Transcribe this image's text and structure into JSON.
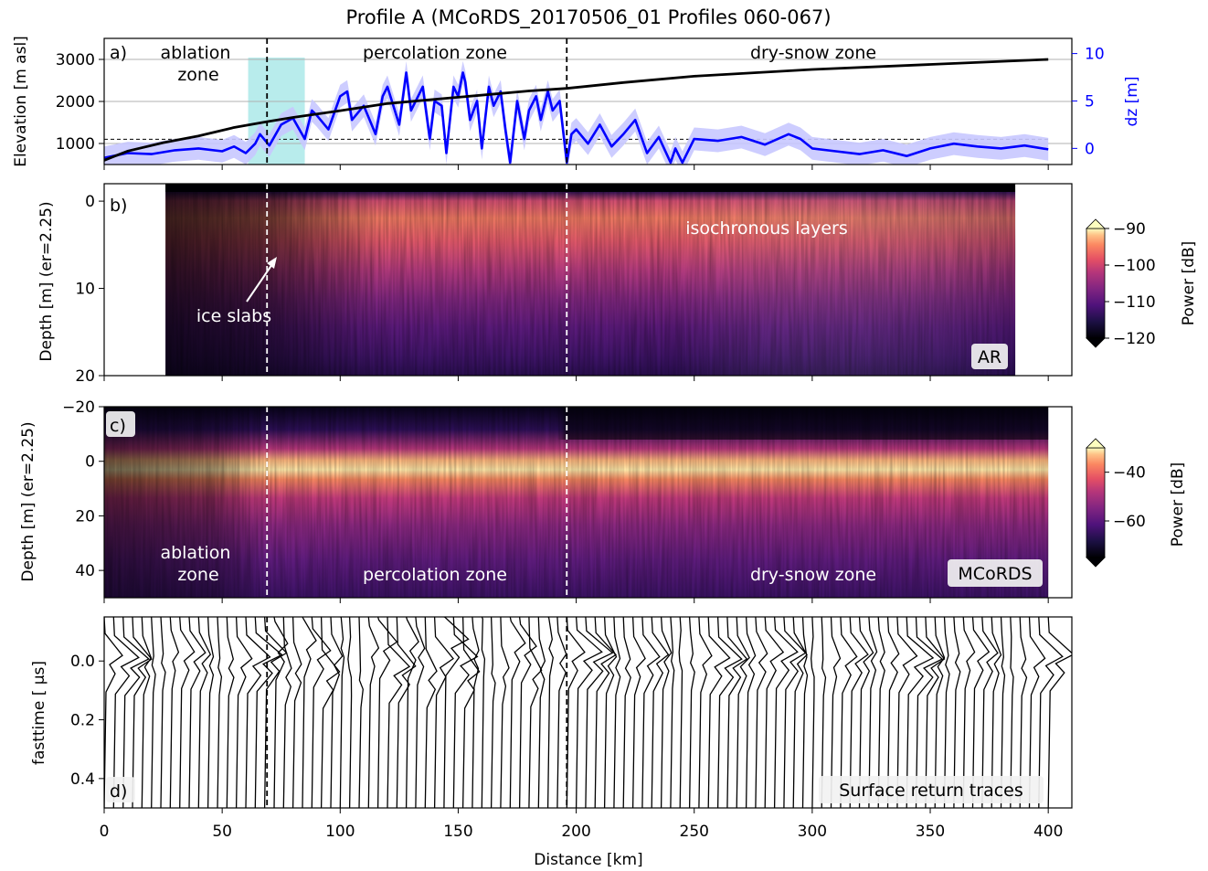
{
  "figure": {
    "title": "Profile A (MCoRDS_20170506_01 Profiles 060-067)",
    "xlabel": "Distance [km]",
    "x_ticks": [
      "0",
      "50",
      "100",
      "150",
      "200",
      "250",
      "300",
      "350",
      "400"
    ],
    "colors": {
      "elevation": "#000000",
      "dz": "#0000ff",
      "dz_band": "#c8c8ff",
      "highlight": "#b8ecec"
    }
  },
  "chart_data": [
    {
      "type": "line",
      "panel": "a)",
      "ylabel": "Elevation [m asl]",
      "y2label": "dz [m]",
      "xlim": [
        0,
        410
      ],
      "ylim": [
        500,
        3500
      ],
      "y2lim": [
        -1.7,
        11.6
      ],
      "yticks": [
        "1000",
        "2000",
        "3000"
      ],
      "y2ticks": [
        "0",
        "5",
        "10"
      ],
      "grid": true,
      "zone_boundaries_km": [
        69,
        196
      ],
      "highlight_range_km": [
        61,
        85
      ],
      "threshold_elevation_m": 1100,
      "zone_labels": [
        {
          "text_lines": [
            "ablation",
            "zone"
          ],
          "x": 40
        },
        {
          "text_lines": [
            "percolation zone"
          ],
          "x": 140
        },
        {
          "text_lines": [
            "dry-snow zone"
          ],
          "x": 300
        }
      ],
      "series": [
        {
          "name": "Elevation",
          "axis": "left",
          "x": [
            0,
            10,
            25,
            40,
            55,
            69,
            80,
            100,
            120,
            150,
            180,
            196,
            220,
            250,
            300,
            350,
            400
          ],
          "y": [
            600,
            820,
            1020,
            1180,
            1380,
            1520,
            1620,
            1780,
            1950,
            2100,
            2250,
            2310,
            2450,
            2600,
            2760,
            2880,
            3000
          ]
        },
        {
          "name": "dz",
          "axis": "right",
          "x": [
            0,
            10,
            20,
            30,
            40,
            50,
            55,
            60,
            64,
            66,
            70,
            75,
            80,
            85,
            88,
            90,
            95,
            100,
            103,
            105,
            110,
            115,
            118,
            120,
            125,
            128,
            130,
            135,
            138,
            140,
            143,
            145,
            148,
            150,
            152,
            153,
            155,
            158,
            160,
            163,
            165,
            168,
            170,
            172,
            175,
            178,
            180,
            183,
            185,
            188,
            190,
            193,
            196,
            198,
            200,
            205,
            210,
            215,
            220,
            225,
            230,
            235,
            240,
            242,
            245,
            250,
            260,
            270,
            280,
            290,
            295,
            300,
            310,
            320,
            330,
            340,
            350,
            360,
            370,
            380,
            390,
            400
          ],
          "y": [
            -1.0,
            -0.5,
            -0.6,
            -0.2,
            0.0,
            -0.3,
            0.2,
            -0.5,
            0.5,
            1.5,
            0.3,
            2.5,
            3.2,
            1.0,
            4.0,
            3.5,
            2.0,
            5.5,
            6.0,
            3.0,
            4.5,
            1.5,
            5.5,
            6.5,
            2.5,
            8.0,
            4.0,
            6.5,
            1.0,
            5.0,
            4.5,
            -0.5,
            6.5,
            5.5,
            8.0,
            7.0,
            3.0,
            5.0,
            0.0,
            6.5,
            4.5,
            6.0,
            2.0,
            -1.5,
            5.0,
            1.0,
            4.0,
            5.5,
            3.0,
            6.0,
            4.0,
            5.0,
            -1.5,
            1.5,
            2.0,
            0.5,
            2.5,
            0.2,
            1.5,
            3.0,
            -0.5,
            1.2,
            -1.5,
            0.0,
            -1.5,
            1.0,
            0.8,
            1.2,
            0.4,
            1.5,
            1.0,
            0.0,
            -0.3,
            -0.6,
            -0.2,
            -0.8,
            0.0,
            0.5,
            0.2,
            0.0,
            0.3,
            -0.1
          ]
        }
      ]
    },
    {
      "type": "heatmap",
      "panel": "b)",
      "ylabel": "Depth [m] (er=2.25)",
      "xlim": [
        0,
        410
      ],
      "ylim": [
        20,
        -2
      ],
      "yticks": [
        "0",
        "10",
        "20"
      ],
      "data_extent_km": [
        26,
        386
      ],
      "zone_boundaries_km": [
        69,
        196
      ],
      "colorbar": {
        "label": "Power [dB]",
        "range": [
          -120,
          -90
        ],
        "ticks": [
          "−90",
          "−100",
          "−110",
          "−120"
        ]
      },
      "annotations": [
        {
          "text": "isochronous layers"
        },
        {
          "text": "ice slabs"
        }
      ],
      "badge": "AR"
    },
    {
      "type": "heatmap",
      "panel": "c)",
      "ylabel": "Depth [m] (er=2.25)",
      "xlim": [
        0,
        410
      ],
      "ylim": [
        50,
        -20
      ],
      "yticks": [
        "−20",
        "0",
        "20",
        "40"
      ],
      "data_extent_km": [
        0,
        400
      ],
      "zone_boundaries_km": [
        69,
        196
      ],
      "colorbar": {
        "label": "Power [dB]",
        "range": [
          -75,
          -30
        ],
        "ticks": [
          "−40",
          "−60"
        ]
      },
      "zone_labels": [
        {
          "text_lines": [
            "ablation",
            "zone"
          ]
        },
        {
          "text_lines": [
            "percolation zone"
          ]
        },
        {
          "text_lines": [
            "dry-snow zone"
          ]
        }
      ],
      "badge": "MCoRDS"
    },
    {
      "type": "line",
      "panel": "d)",
      "ylabel": "fasttime [ μs]",
      "xlim": [
        0,
        410
      ],
      "ylim": [
        0.5,
        -0.15
      ],
      "yticks": [
        "0.0",
        "0.2",
        "0.4"
      ],
      "zone_boundaries_km": [
        69,
        196
      ],
      "trace_spacing_km": 4,
      "badge": "Surface return traces"
    }
  ]
}
